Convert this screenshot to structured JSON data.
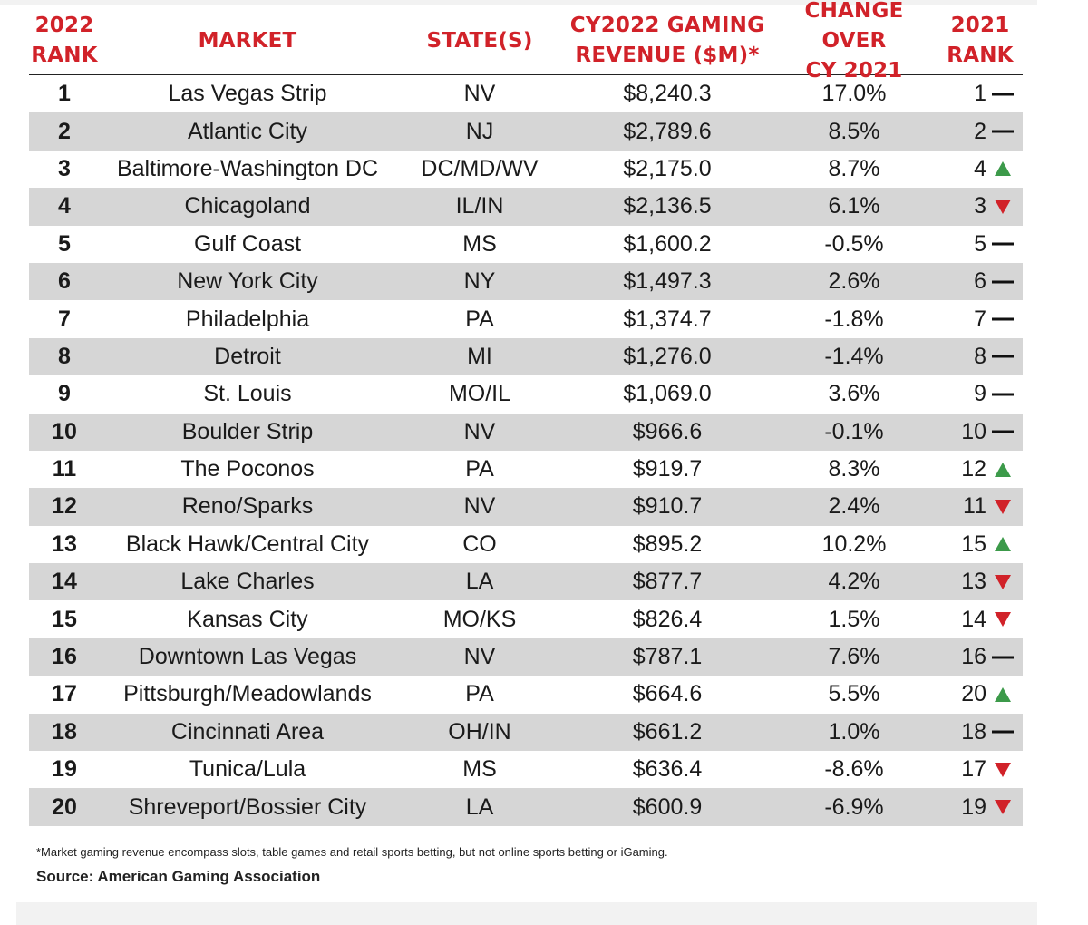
{
  "headers": {
    "rank_2022": "2022\nRANK",
    "market": "MARKET",
    "states": "STATE(S)",
    "revenue": "CY2022 GAMING\nREVENUE ($M)*",
    "change": "CHANGE OVER\nCY 2021",
    "rank_2021": "2021\nRANK"
  },
  "rows": [
    {
      "rank": "1",
      "market": "Las Vegas Strip",
      "state": "NV",
      "revenue": "$8,240.3",
      "change": "17.0%",
      "prev_rank": "1",
      "trend": "same"
    },
    {
      "rank": "2",
      "market": "Atlantic City",
      "state": "NJ",
      "revenue": "$2,789.6",
      "change": "8.5%",
      "prev_rank": "2",
      "trend": "same"
    },
    {
      "rank": "3",
      "market": "Baltimore-Washington DC",
      "state": "DC/MD/WV",
      "revenue": "$2,175.0",
      "change": "8.7%",
      "prev_rank": "4",
      "trend": "up"
    },
    {
      "rank": "4",
      "market": "Chicagoland",
      "state": "IL/IN",
      "revenue": "$2,136.5",
      "change": "6.1%",
      "prev_rank": "3",
      "trend": "down"
    },
    {
      "rank": "5",
      "market": "Gulf Coast",
      "state": "MS",
      "revenue": "$1,600.2",
      "change": "-0.5%",
      "prev_rank": "5",
      "trend": "same"
    },
    {
      "rank": "6",
      "market": "New York City",
      "state": "NY",
      "revenue": "$1,497.3",
      "change": "2.6%",
      "prev_rank": "6",
      "trend": "same"
    },
    {
      "rank": "7",
      "market": "Philadelphia",
      "state": "PA",
      "revenue": "$1,374.7",
      "change": "-1.8%",
      "prev_rank": "7",
      "trend": "same"
    },
    {
      "rank": "8",
      "market": "Detroit",
      "state": "MI",
      "revenue": "$1,276.0",
      "change": "-1.4%",
      "prev_rank": "8",
      "trend": "same"
    },
    {
      "rank": "9",
      "market": "St. Louis",
      "state": "MO/IL",
      "revenue": "$1,069.0",
      "change": "3.6%",
      "prev_rank": "9",
      "trend": "same"
    },
    {
      "rank": "10",
      "market": "Boulder Strip",
      "state": "NV",
      "revenue": "$966.6",
      "change": "-0.1%",
      "prev_rank": "10",
      "trend": "same"
    },
    {
      "rank": "11",
      "market": "The Poconos",
      "state": "PA",
      "revenue": "$919.7",
      "change": "8.3%",
      "prev_rank": "12",
      "trend": "up"
    },
    {
      "rank": "12",
      "market": "Reno/Sparks",
      "state": "NV",
      "revenue": "$910.7",
      "change": "2.4%",
      "prev_rank": "11",
      "trend": "down"
    },
    {
      "rank": "13",
      "market": "Black Hawk/Central City",
      "state": "CO",
      "revenue": "$895.2",
      "change": "10.2%",
      "prev_rank": "15",
      "trend": "up"
    },
    {
      "rank": "14",
      "market": "Lake Charles",
      "state": "LA",
      "revenue": "$877.7",
      "change": "4.2%",
      "prev_rank": "13",
      "trend": "down"
    },
    {
      "rank": "15",
      "market": "Kansas City",
      "state": "MO/KS",
      "revenue": "$826.4",
      "change": "1.5%",
      "prev_rank": "14",
      "trend": "down"
    },
    {
      "rank": "16",
      "market": "Downtown Las Vegas",
      "state": "NV",
      "revenue": "$787.1",
      "change": "7.6%",
      "prev_rank": "16",
      "trend": "same"
    },
    {
      "rank": "17",
      "market": "Pittsburgh/Meadowlands",
      "state": "PA",
      "revenue": "$664.6",
      "change": "5.5%",
      "prev_rank": "20",
      "trend": "up"
    },
    {
      "rank": "18",
      "market": "Cincinnati Area",
      "state": "OH/IN",
      "revenue": "$661.2",
      "change": "1.0%",
      "prev_rank": "18",
      "trend": "same"
    },
    {
      "rank": "19",
      "market": "Tunica/Lula",
      "state": "MS",
      "revenue": "$636.4",
      "change": "-8.6%",
      "prev_rank": "17",
      "trend": "down"
    },
    {
      "rank": "20",
      "market": "Shreveport/Bossier City",
      "state": "LA",
      "revenue": "$600.9",
      "change": "-6.9%",
      "prev_rank": "19",
      "trend": "down"
    }
  ],
  "footnote": "*Market gaming revenue encompass slots, table games and retail sports betting, but not online sports betting or iGaming.",
  "source": "Source: American Gaming Association",
  "colors": {
    "header_red": "#d12229",
    "alt_row_gray": "#d6d6d6",
    "up_green": "#3c9a4a",
    "down_red": "#d12229",
    "same_black": "#111111"
  }
}
